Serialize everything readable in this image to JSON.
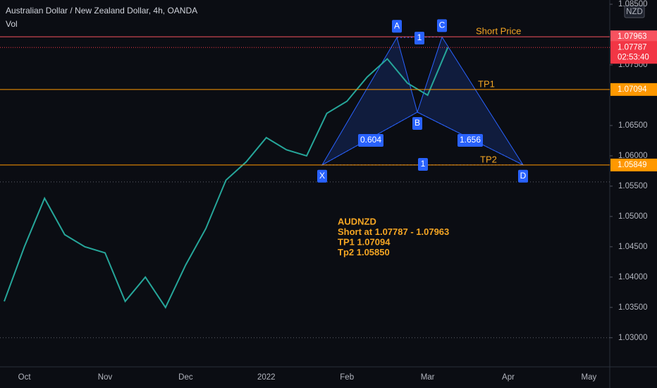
{
  "chart_data": {
    "type": "line",
    "title": "Australian Dollar / New Zealand Dollar, 4h, OANDA",
    "subtitle": "Vol",
    "currency": "NZD",
    "categories": [
      null,
      "Oct",
      null,
      null,
      null,
      "Nov",
      null,
      null,
      null,
      "Dec",
      null,
      null,
      null,
      "2022",
      null,
      null,
      null,
      "Feb",
      null,
      null,
      null,
      "Mar",
      null,
      null,
      null,
      "Apr",
      null,
      null,
      null,
      "May"
    ],
    "series": [
      {
        "color": "#26a69a",
        "values": [
          1.036,
          1.045,
          1.053,
          1.047,
          1.045,
          1.044,
          1.036,
          1.04,
          1.035,
          1.042,
          1.048,
          1.056,
          1.059,
          1.063,
          1.061,
          1.06,
          1.067,
          1.069,
          1.073,
          1.076,
          1.072,
          1.07,
          1.07787,
          null,
          null,
          null,
          null,
          null,
          null,
          null
        ]
      }
    ],
    "ylim": [
      1.0252,
      1.0857
    ],
    "yticks": [
      {
        "value": 1.03,
        "label": "1.03000"
      },
      {
        "value": 1.035,
        "label": "1.03500"
      },
      {
        "value": 1.04,
        "label": "1.04000"
      },
      {
        "value": 1.045,
        "label": "1.04500"
      },
      {
        "value": 1.05,
        "label": "1.05000"
      },
      {
        "value": 1.055,
        "label": "1.05500"
      },
      {
        "value": 1.06,
        "label": "1.06000"
      },
      {
        "value": 1.065,
        "label": "1.06500"
      },
      {
        "value": 1.075,
        "label": "1.07500"
      },
      {
        "value": 1.085,
        "label": "1.08500"
      }
    ],
    "levels": [
      {
        "name": "Short Price",
        "value": 1.07963,
        "color": "#f7525f"
      },
      {
        "name": "TP1",
        "value": 1.07094,
        "color": "#ff9800"
      },
      {
        "name": "TP2",
        "value": 1.05849,
        "color": "#ff9800"
      }
    ],
    "current_price": {
      "value": 1.07787,
      "countdown": "02:53:40",
      "color": "#f23645"
    },
    "dotted_levels": [
      1.0557,
      1.03
    ],
    "pattern": {
      "points": [
        {
          "label": "X",
          "value": 1.0585
        },
        {
          "label": "A",
          "value": 1.0795
        },
        {
          "label": "B",
          "value": 1.0672
        },
        {
          "label": "C",
          "value": 1.0796
        },
        {
          "label": "D",
          "value": 1.0585
        }
      ],
      "ratios": [
        "0.604",
        "1.656",
        "1",
        "1"
      ]
    },
    "annotation": [
      "AUDNZD",
      "Short at 1.07787 - 1.07963",
      "TP1 1.07094",
      "Tp2 1.05850"
    ]
  }
}
